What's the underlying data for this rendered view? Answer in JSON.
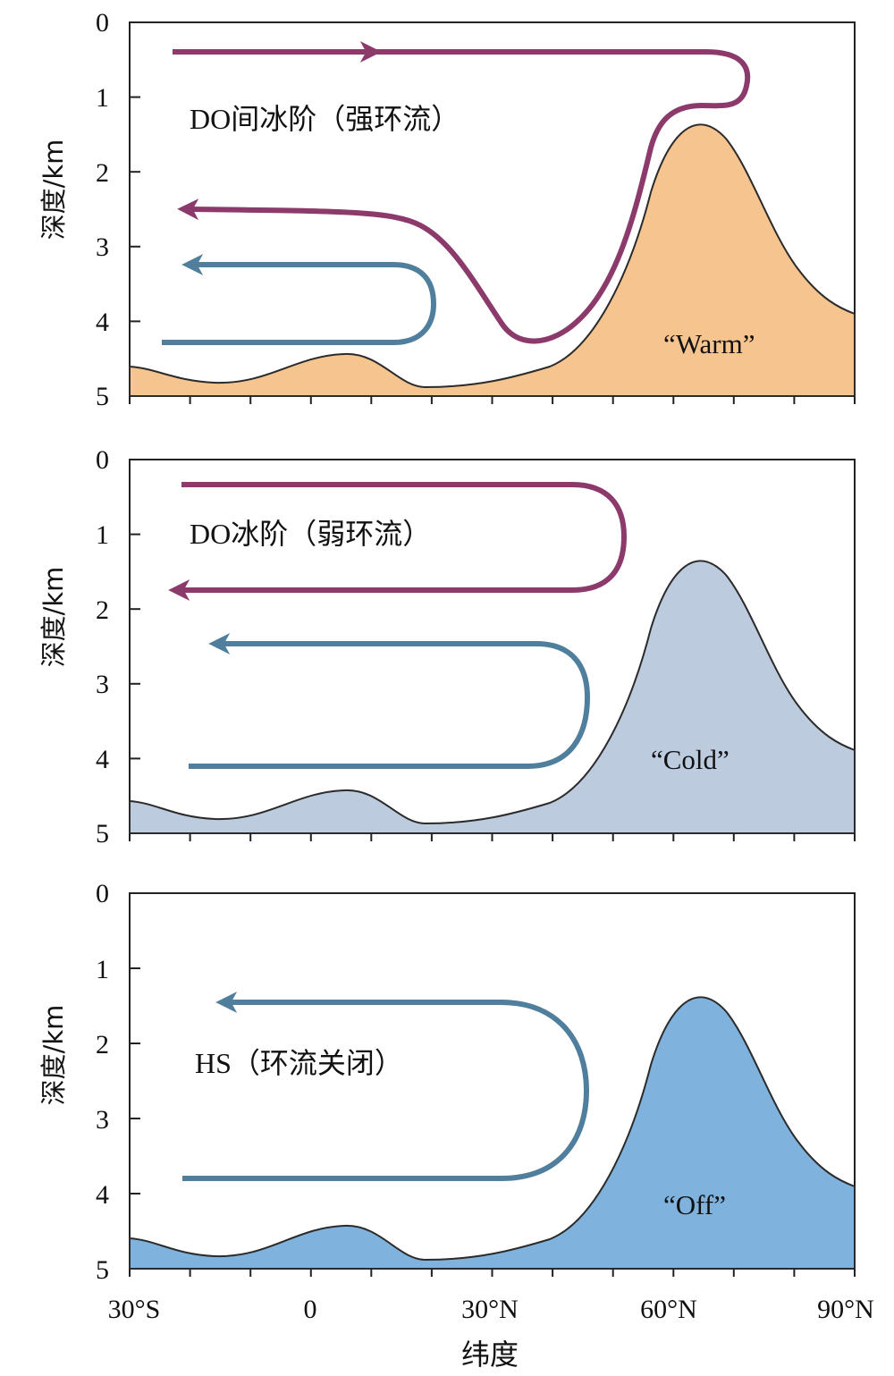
{
  "x_axis": {
    "label": "纬度",
    "tick_labels": [
      "30°S",
      "0",
      "30°N",
      "60°N",
      "90°N"
    ]
  },
  "panels": [
    {
      "id": "do-interstadial",
      "annotation": "DO间冰阶（强环流）",
      "mode_label": "“Warm”",
      "y_label": "深度/km",
      "y_tick_labels": [
        "0",
        "1",
        "2",
        "3",
        "4",
        "5"
      ],
      "fill_color": "#f6c48f",
      "arrows": [
        "upper-purple-cell",
        "lower-purple-cell",
        "blue-cell"
      ]
    },
    {
      "id": "do-stadial",
      "annotation": "DO冰阶（弱环流）",
      "mode_label": "“Cold”",
      "y_label": "深度/km",
      "y_tick_labels": [
        "0",
        "1",
        "2",
        "3",
        "4",
        "5"
      ],
      "fill_color": "#bccbde",
      "arrows": [
        "purple-cell",
        "blue-cell"
      ]
    },
    {
      "id": "hs",
      "annotation": "HS（环流关闭）",
      "mode_label": "“Off”",
      "y_label": "深度/km",
      "y_tick_labels": [
        "0",
        "1",
        "2",
        "3",
        "4",
        "5"
      ],
      "fill_color": "#7fb3de",
      "arrows": [
        "blue-cell"
      ]
    }
  ],
  "colors": {
    "purple_arrow": "#8b3a6b",
    "blue_arrow": "#4f7f9c",
    "outline": "#2b2b2b"
  }
}
